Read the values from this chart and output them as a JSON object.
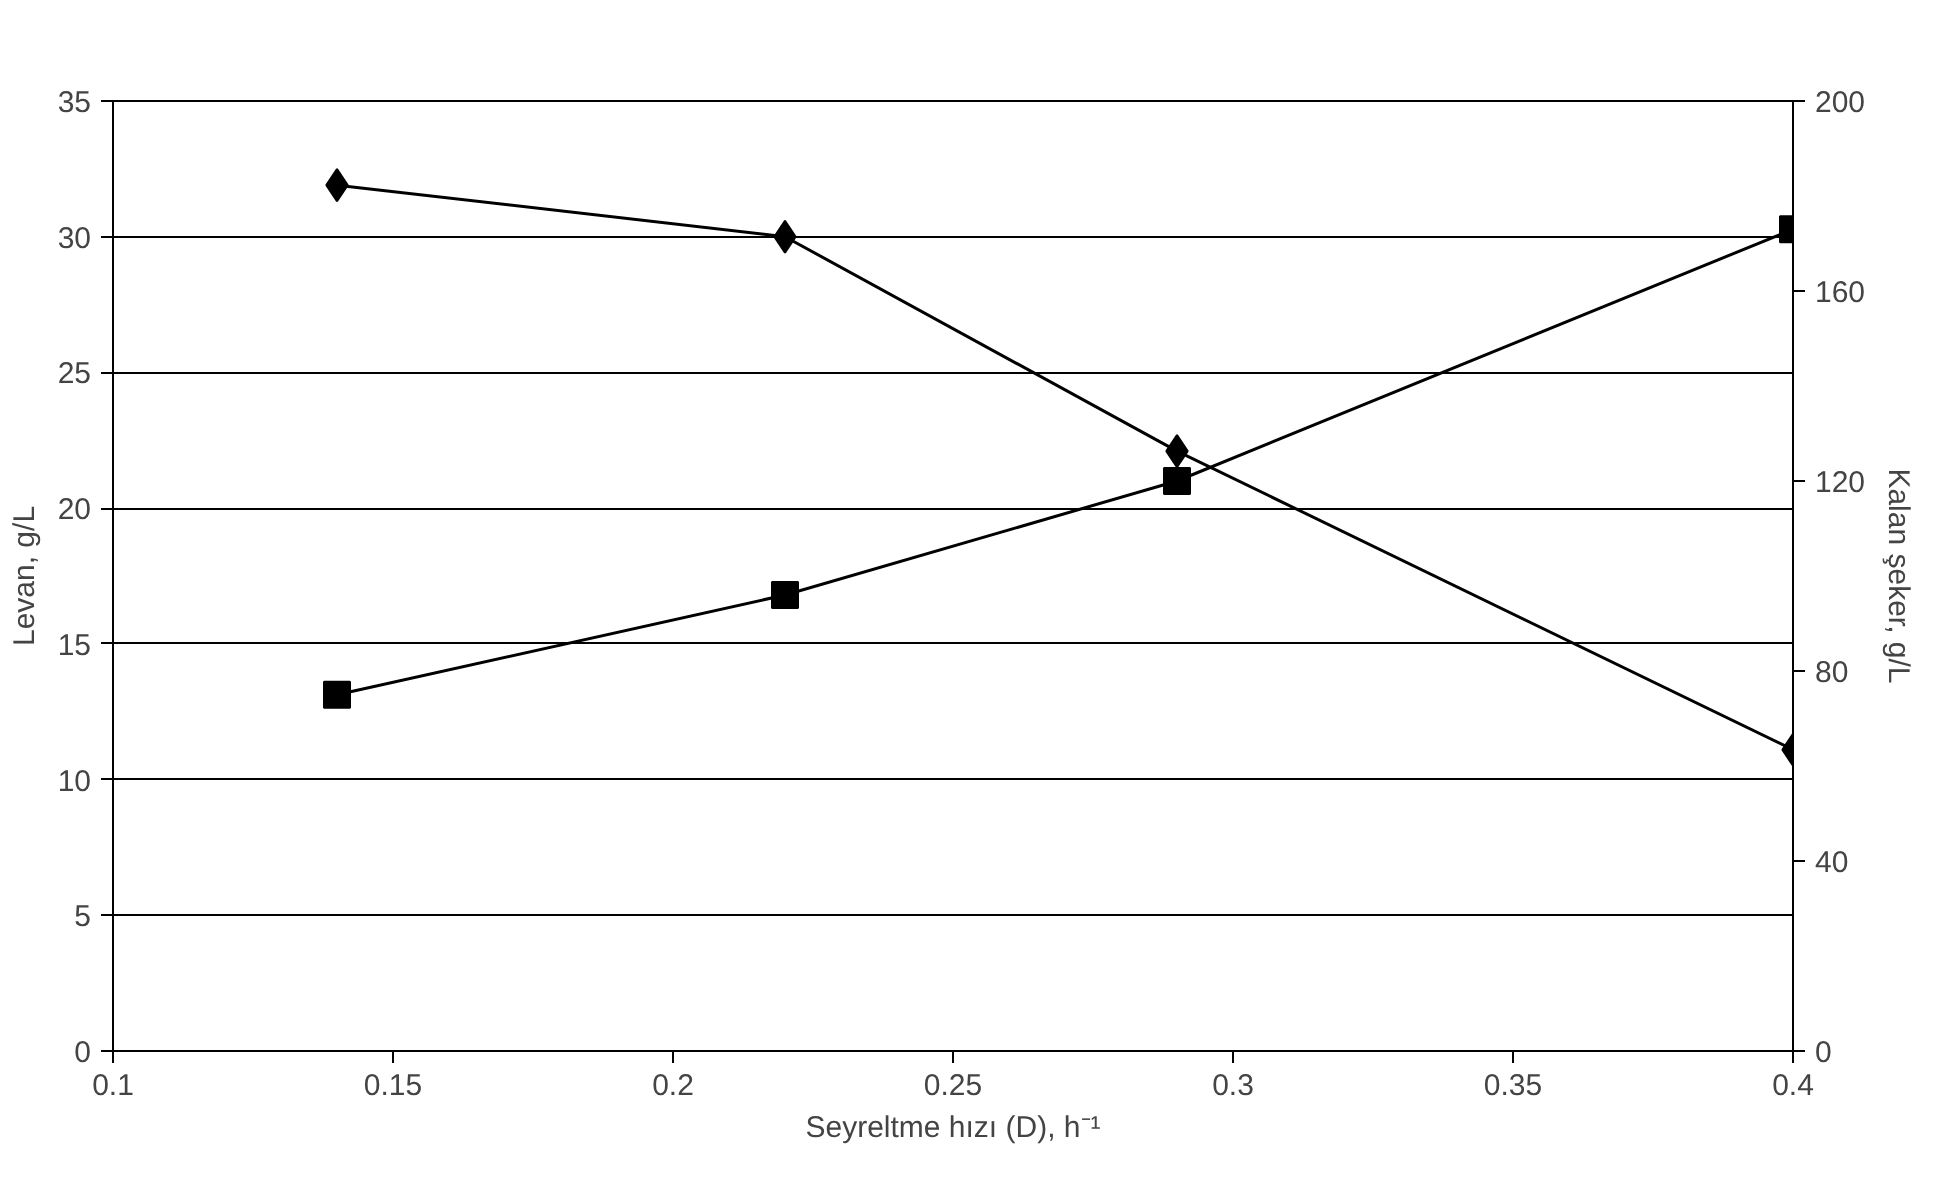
{
  "chart_data": {
    "type": "line",
    "xlabel": "Seyreltme hızı (D), h⁻¹",
    "ylabel": "Levan, g/L",
    "y2label": "Kalan şeker, g/L",
    "x": [
      0.14,
      0.22,
      0.29,
      0.4
    ],
    "series": [
      {
        "color": "#000000",
        "marker": "diamond",
        "values": [
          31.9,
          30.0,
          22.1,
          11.1
        ]
      },
      {
        "color": "#000000",
        "marker": "square",
        "axis": "y2",
        "values": [
          75,
          96,
          120,
          173
        ]
      }
    ],
    "xlim": [
      0.1,
      0.4
    ],
    "xticks": [
      0.1,
      0.15,
      0.2,
      0.25,
      0.3,
      0.35,
      0.4
    ],
    "ylim": [
      0,
      35
    ],
    "yticks": [
      0,
      5,
      10,
      15,
      20,
      25,
      30,
      35
    ],
    "y2lim": [
      0,
      200
    ],
    "y2ticks": [
      0,
      40,
      80,
      120,
      160,
      200
    ],
    "grid": "y",
    "line_style": "solid"
  }
}
